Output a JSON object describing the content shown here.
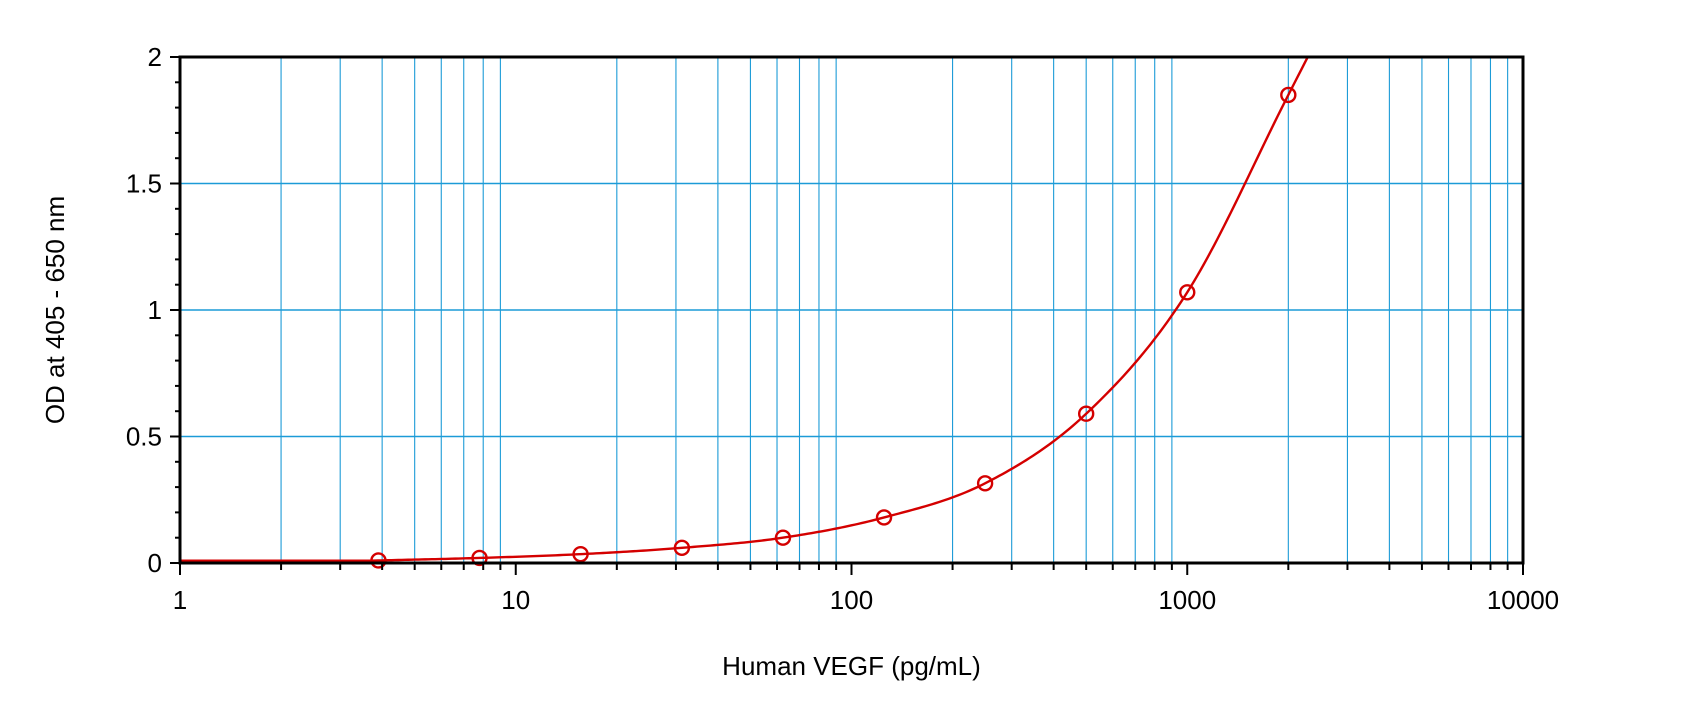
{
  "chart_data": {
    "type": "scatter",
    "title": "",
    "xlabel": "Human VEGF (pg/mL)",
    "ylabel": "OD at 405 - 650 nm",
    "x_scale": "log",
    "xlim": [
      1,
      10000
    ],
    "ylim": [
      0,
      2
    ],
    "grid": true,
    "x_tick_labels": [
      "1",
      "10",
      "100",
      "1000",
      "10000"
    ],
    "y_tick_labels": [
      "0",
      "0.5",
      "1",
      "1.5",
      "2"
    ],
    "series": [
      {
        "x": [
          3.9,
          7.8,
          15.6,
          31.25,
          62.5,
          125,
          250,
          500,
          1000,
          2000
        ],
        "y": [
          0.01,
          0.02,
          0.035,
          0.06,
          0.1,
          0.18,
          0.315,
          0.59,
          1.07,
          1.85
        ]
      }
    ],
    "colors": {
      "grid": "#1c9bd7",
      "series": "#d40000",
      "frame": "#000000"
    }
  }
}
